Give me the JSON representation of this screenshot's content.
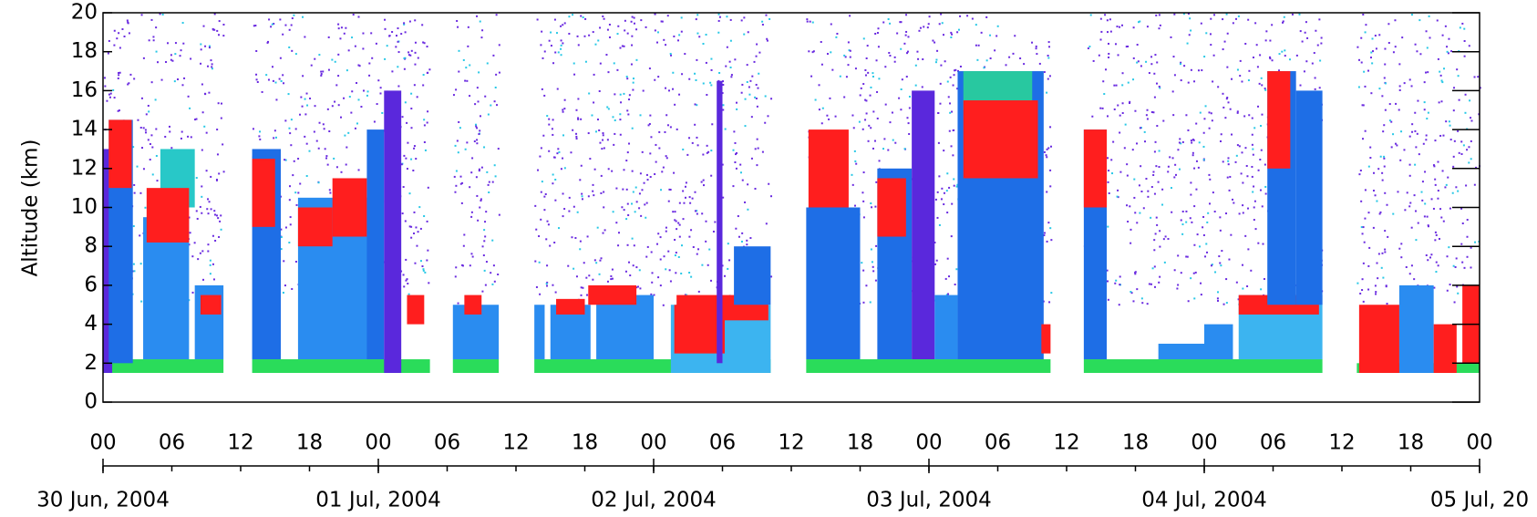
{
  "chart_data": {
    "type": "lidar-profile",
    "y_label": "Altitude (km)",
    "xlim": [
      0,
      120
    ],
    "ylim": [
      0,
      20
    ],
    "yticks": [
      0,
      2,
      4,
      6,
      8,
      10,
      12,
      14,
      16,
      18,
      20
    ],
    "xticks": [
      {
        "value": 0,
        "label": "00"
      },
      {
        "value": 6,
        "label": "06"
      },
      {
        "value": 12,
        "label": "12"
      },
      {
        "value": 18,
        "label": "18"
      },
      {
        "value": 24,
        "label": "00"
      },
      {
        "value": 30,
        "label": "06"
      },
      {
        "value": 36,
        "label": "12"
      },
      {
        "value": 42,
        "label": "18"
      },
      {
        "value": 48,
        "label": "00"
      },
      {
        "value": 54,
        "label": "06"
      },
      {
        "value": 60,
        "label": "12"
      },
      {
        "value": 66,
        "label": "18"
      },
      {
        "value": 72,
        "label": "00"
      },
      {
        "value": 78,
        "label": "06"
      },
      {
        "value": 84,
        "label": "12"
      },
      {
        "value": 90,
        "label": "18"
      },
      {
        "value": 96,
        "label": "00"
      },
      {
        "value": 102,
        "label": "06"
      },
      {
        "value": 108,
        "label": "12"
      },
      {
        "value": 114,
        "label": "18"
      },
      {
        "value": 120,
        "label": "00"
      }
    ],
    "date_ticks": [
      {
        "value": 0,
        "label": "30 Jun, 2004"
      },
      {
        "value": 24,
        "label": "01 Jul, 2004"
      },
      {
        "value": 48,
        "label": "02 Jul, 2004"
      },
      {
        "value": 72,
        "label": "03 Jul, 2004"
      },
      {
        "value": 96,
        "label": "04 Jul, 2004"
      },
      {
        "value": 120,
        "label": "05 Jul, 20"
      }
    ],
    "periods": [
      [
        0,
        10.5
      ],
      [
        13,
        28.5
      ],
      [
        30.5,
        34.5
      ],
      [
        37.6,
        58.2
      ],
      [
        61.3,
        82.6
      ],
      [
        85.5,
        106.3
      ],
      [
        109.3,
        120
      ]
    ],
    "layers": [
      {
        "x": [
          0,
          10.5
        ],
        "y": [
          1.5,
          2.2
        ],
        "color": "#2adc5a"
      },
      {
        "x": [
          0,
          0.8
        ],
        "y": [
          1.5,
          13
        ],
        "color": "#5a28dc"
      },
      {
        "x": [
          0.5,
          2.6
        ],
        "y": [
          2,
          14.5
        ],
        "color": "#1e6ee6"
      },
      {
        "x": [
          0.5,
          2.5
        ],
        "y": [
          11,
          14.5
        ],
        "color": "#ff1e1e"
      },
      {
        "x": [
          3.5,
          7.5
        ],
        "y": [
          2.2,
          9.5
        ],
        "color": "#2a8cf0"
      },
      {
        "x": [
          5,
          8
        ],
        "y": [
          10,
          13
        ],
        "color": "#28c8c8"
      },
      {
        "x": [
          3.8,
          7.5
        ],
        "y": [
          8.2,
          11
        ],
        "color": "#ff1e1e"
      },
      {
        "x": [
          8,
          10.5
        ],
        "y": [
          2.2,
          6
        ],
        "color": "#2a8cf0"
      },
      {
        "x": [
          8.5,
          10.3
        ],
        "y": [
          4.5,
          5.5
        ],
        "color": "#ff1e1e"
      },
      {
        "x": [
          13,
          28.5
        ],
        "y": [
          1.5,
          2.2
        ],
        "color": "#2adc5a"
      },
      {
        "x": [
          13,
          15.5
        ],
        "y": [
          2.2,
          13
        ],
        "color": "#1e6ee6"
      },
      {
        "x": [
          13,
          15
        ],
        "y": [
          9,
          12.5
        ],
        "color": "#ff1e1e"
      },
      {
        "x": [
          17,
          23.5
        ],
        "y": [
          2.2,
          10.5
        ],
        "color": "#2a8cf0"
      },
      {
        "x": [
          17,
          20
        ],
        "y": [
          8,
          10
        ],
        "color": "#ff1e1e"
      },
      {
        "x": [
          20,
          23
        ],
        "y": [
          8.5,
          11.5
        ],
        "color": "#ff1e1e"
      },
      {
        "x": [
          23,
          24.5
        ],
        "y": [
          2.2,
          14
        ],
        "color": "#1e6ee6"
      },
      {
        "x": [
          24.5,
          26
        ],
        "y": [
          1.5,
          16
        ],
        "color": "#5a28dc"
      },
      {
        "x": [
          26.5,
          28
        ],
        "y": [
          4,
          5.5
        ],
        "color": "#ff1e1e"
      },
      {
        "x": [
          30.5,
          34.5
        ],
        "y": [
          1.5,
          2.2
        ],
        "color": "#2adc5a"
      },
      {
        "x": [
          30.5,
          34.5
        ],
        "y": [
          2.2,
          5
        ],
        "color": "#2a8cf0"
      },
      {
        "x": [
          31.5,
          33
        ],
        "y": [
          4.5,
          5.5
        ],
        "color": "#ff1e1e"
      },
      {
        "x": [
          37.6,
          58.2
        ],
        "y": [
          1.5,
          2.2
        ],
        "color": "#2adc5a"
      },
      {
        "x": [
          37.6,
          38.5
        ],
        "y": [
          2.2,
          5
        ],
        "color": "#2a8cf0"
      },
      {
        "x": [
          39,
          42.5
        ],
        "y": [
          2.2,
          5
        ],
        "color": "#2a8cf0"
      },
      {
        "x": [
          39.5,
          42
        ],
        "y": [
          4.5,
          5.3
        ],
        "color": "#ff1e1e"
      },
      {
        "x": [
          43,
          48
        ],
        "y": [
          2.2,
          5.5
        ],
        "color": "#2a8cf0"
      },
      {
        "x": [
          42.3,
          46.5
        ],
        "y": [
          5,
          6
        ],
        "color": "#ff1e1e"
      },
      {
        "x": [
          49.5,
          58.2
        ],
        "y": [
          1.5,
          5
        ],
        "color": "#3cb4f0"
      },
      {
        "x": [
          49.8,
          54.2
        ],
        "y": [
          2.5,
          5
        ],
        "color": "#ff1e1e"
      },
      {
        "x": [
          50,
          58
        ],
        "y": [
          4.2,
          5.5
        ],
        "color": "#ff1e1e"
      },
      {
        "x": [
          55,
          58.2
        ],
        "y": [
          5,
          8
        ],
        "color": "#1e6ee6"
      },
      {
        "x": [
          53.5,
          54
        ],
        "y": [
          2,
          16.5
        ],
        "color": "#5a28dc"
      },
      {
        "x": [
          61.3,
          82.6
        ],
        "y": [
          1.5,
          2.2
        ],
        "color": "#2adc5a"
      },
      {
        "x": [
          61.3,
          66
        ],
        "y": [
          2.2,
          10
        ],
        "color": "#1e6ee6"
      },
      {
        "x": [
          61.5,
          65
        ],
        "y": [
          10,
          14
        ],
        "color": "#ff1e1e"
      },
      {
        "x": [
          67.5,
          70.5
        ],
        "y": [
          2.2,
          12
        ],
        "color": "#1e6ee6"
      },
      {
        "x": [
          67.5,
          70
        ],
        "y": [
          8.5,
          11.5
        ],
        "color": "#ff1e1e"
      },
      {
        "x": [
          70.5,
          72.5
        ],
        "y": [
          2.2,
          16
        ],
        "color": "#5a28dc"
      },
      {
        "x": [
          72.5,
          74.5
        ],
        "y": [
          2.2,
          5.5
        ],
        "color": "#2a8cf0"
      },
      {
        "x": [
          74.5,
          82
        ],
        "y": [
          2.2,
          17
        ],
        "color": "#1e6ee6"
      },
      {
        "x": [
          75,
          81
        ],
        "y": [
          15,
          17
        ],
        "color": "#28c8a0"
      },
      {
        "x": [
          75,
          81.5
        ],
        "y": [
          11.5,
          15.5
        ],
        "color": "#ff1e1e"
      },
      {
        "x": [
          81.8,
          82.6
        ],
        "y": [
          2.5,
          4
        ],
        "color": "#ff1e1e"
      },
      {
        "x": [
          85.5,
          106.3
        ],
        "y": [
          1.5,
          2.2
        ],
        "color": "#2adc5a"
      },
      {
        "x": [
          85.5,
          87.5
        ],
        "y": [
          2.2,
          14
        ],
        "color": "#1e6ee6"
      },
      {
        "x": [
          85.5,
          87.5
        ],
        "y": [
          10,
          14
        ],
        "color": "#ff1e1e"
      },
      {
        "x": [
          92,
          96
        ],
        "y": [
          2.2,
          3
        ],
        "color": "#2a8cf0"
      },
      {
        "x": [
          96,
          98.5
        ],
        "y": [
          2.2,
          4
        ],
        "color": "#2a8cf0"
      },
      {
        "x": [
          99,
          106.3
        ],
        "y": [
          2.2,
          5.5
        ],
        "color": "#3cb4f0"
      },
      {
        "x": [
          99,
          106
        ],
        "y": [
          4.5,
          5.5
        ],
        "color": "#ff1e1e"
      },
      {
        "x": [
          101.5,
          104
        ],
        "y": [
          5,
          17
        ],
        "color": "#1e6ee6"
      },
      {
        "x": [
          101.5,
          103.5
        ],
        "y": [
          12,
          17
        ],
        "color": "#ff1e1e"
      },
      {
        "x": [
          104,
          106.3
        ],
        "y": [
          5,
          16
        ],
        "color": "#1e6ee6"
      },
      {
        "x": [
          109.3,
          120
        ],
        "y": [
          1.5,
          2
        ],
        "color": "#2adc5a"
      },
      {
        "x": [
          113,
          116
        ],
        "y": [
          1.5,
          6
        ],
        "color": "#2a8cf0"
      },
      {
        "x": [
          109.5,
          113
        ],
        "y": [
          1.5,
          5
        ],
        "color": "#ff1e1e"
      },
      {
        "x": [
          116,
          118
        ],
        "y": [
          1.5,
          4
        ],
        "color": "#ff1e1e"
      },
      {
        "x": [
          118.5,
          120
        ],
        "y": [
          2,
          6
        ],
        "color": "#ff1e1e"
      }
    ]
  }
}
